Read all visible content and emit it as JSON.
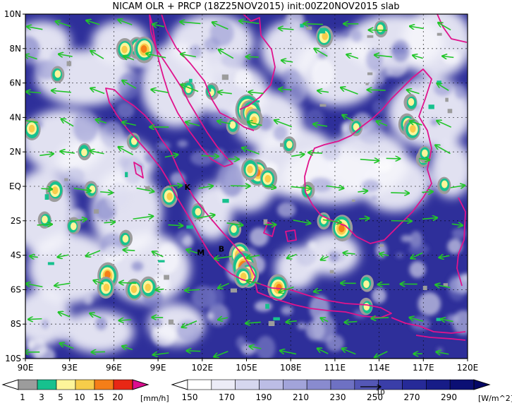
{
  "title": "NICAM OLR + PRCP (18Z25NOV2015) init:00Z20NOV2015 slab",
  "map": {
    "lat_labels": [
      "10N",
      "8N",
      "6N",
      "4N",
      "2N",
      "EQ",
      "2S",
      "4S",
      "6S",
      "8S",
      "10S"
    ],
    "lon_labels": [
      "90E",
      "93E",
      "96E",
      "99E",
      "102E",
      "105E",
      "108E",
      "111E",
      "114E",
      "117E",
      "120E"
    ],
    "extent": {
      "lon": [
        90,
        120
      ],
      "lat": [
        -10,
        10
      ]
    },
    "place_labels": [
      {
        "text": "K",
        "lon": 101.0,
        "lat": -0.2
      },
      {
        "text": "M",
        "lon": 101.9,
        "lat": -4.0
      },
      {
        "text": "B",
        "lon": 103.3,
        "lat": -3.8
      }
    ],
    "colors": {
      "olr_background": "#2e2f9a",
      "coastline": "#e0138c",
      "wind_vectors": "#22c52a",
      "grid": "#000000"
    }
  },
  "precip_legend": {
    "ticks": [
      "1",
      "3",
      "5",
      "10",
      "15",
      "20"
    ],
    "unit": "[mm/h]",
    "colors": [
      "#9c9c9c",
      "#17c18e",
      "#fdf59a",
      "#f7cd4a",
      "#f57e18",
      "#e82715",
      "#dd0d8f"
    ]
  },
  "olr_legend": {
    "ticks": [
      "150",
      "170",
      "190",
      "210",
      "230",
      "250",
      "270",
      "290"
    ],
    "unit": "[W/m^2]",
    "vector_reference": "10",
    "colors": [
      "#ffffff",
      "#ececf7",
      "#d6d7ef",
      "#bcbde5",
      "#a2a4da",
      "#898bcf",
      "#6e71c3",
      "#5457b6",
      "#3a3ea8",
      "#262a98",
      "#171c87",
      "#0b0f74"
    ]
  }
}
